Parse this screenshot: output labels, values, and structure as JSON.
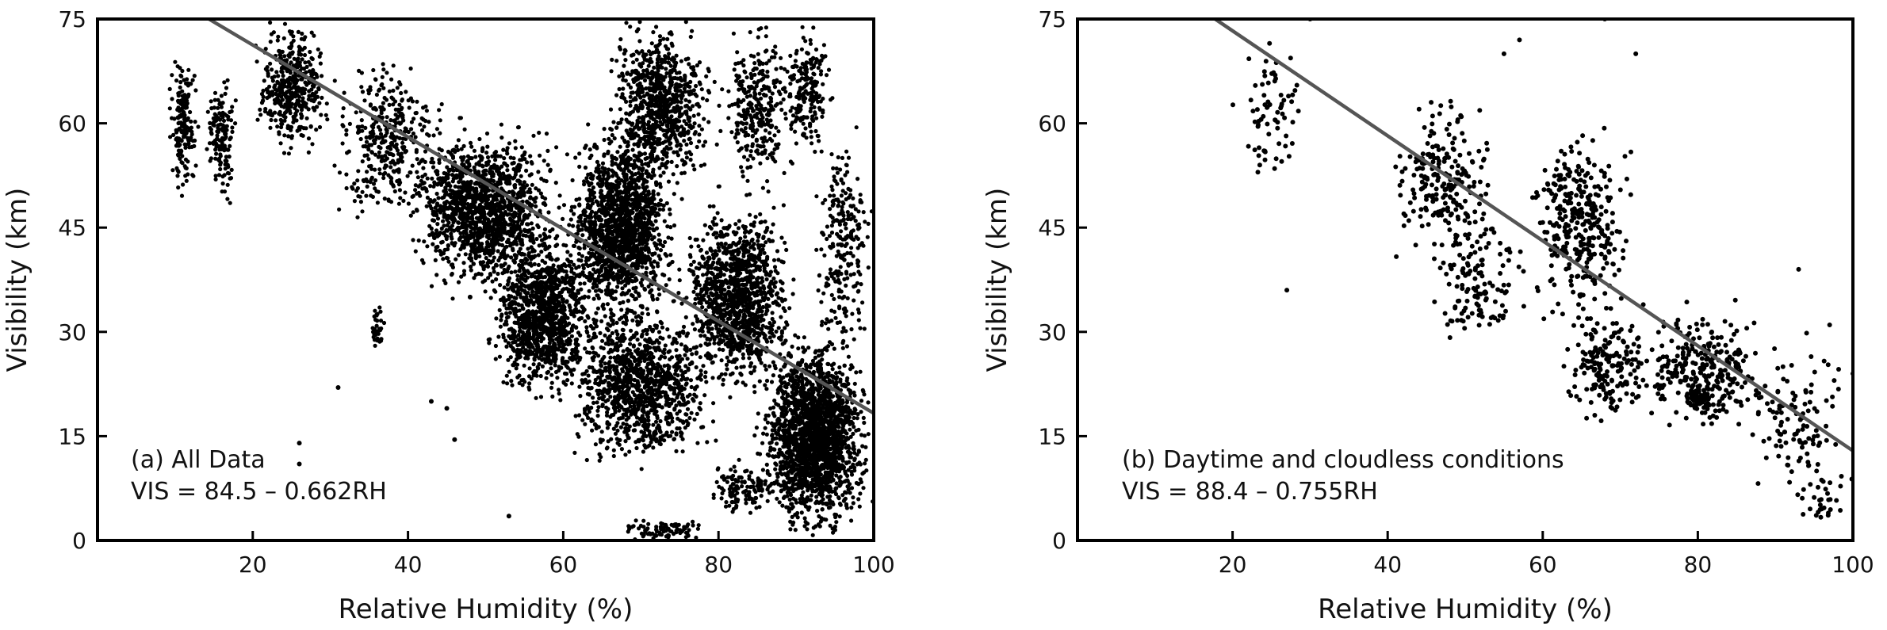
{
  "chart_data": [
    {
      "type": "scatter",
      "panel": "a",
      "xlabel": "Relative Humidity (%)",
      "ylabel": "Visibility (km)",
      "xlim": [
        0,
        100
      ],
      "ylim": [
        0,
        75
      ],
      "xticks": [
        "20",
        "40",
        "60",
        "80",
        "100"
      ],
      "yticks": [
        "0",
        "15",
        "30",
        "45",
        "60",
        "75"
      ],
      "annotations": [
        "(a) All Data",
        "VIS = 84.5 – 0.662RH"
      ],
      "fit_line": {
        "intercept": 84.5,
        "slope": -0.662,
        "color": "#555555"
      },
      "point_color": "#000000",
      "series_note": "dense cloud of several thousand observations",
      "clusters": [
        {
          "x": [
            9,
            13
          ],
          "y": [
            50,
            70
          ],
          "n": 180
        },
        {
          "x": [
            14,
            18
          ],
          "y": [
            48,
            68
          ],
          "n": 150
        },
        {
          "x": [
            20,
            30
          ],
          "y": [
            55,
            75
          ],
          "n": 420
        },
        {
          "x": [
            30,
            45
          ],
          "y": [
            45,
            70
          ],
          "n": 380
        },
        {
          "x": [
            35,
            37
          ],
          "y": [
            27,
            35
          ],
          "n": 40
        },
        {
          "x": [
            40,
            60
          ],
          "y": [
            35,
            60
          ],
          "n": 1400
        },
        {
          "x": [
            50,
            65
          ],
          "y": [
            20,
            45
          ],
          "n": 1100
        },
        {
          "x": [
            60,
            75
          ],
          "y": [
            30,
            60
          ],
          "n": 1500
        },
        {
          "x": [
            65,
            80
          ],
          "y": [
            50,
            75
          ],
          "n": 800
        },
        {
          "x": [
            60,
            80
          ],
          "y": [
            10,
            35
          ],
          "n": 1100
        },
        {
          "x": [
            75,
            90
          ],
          "y": [
            20,
            50
          ],
          "n": 1200
        },
        {
          "x": [
            80,
            90
          ],
          "y": [
            50,
            75
          ],
          "n": 300
        },
        {
          "x": [
            88,
            95
          ],
          "y": [
            55,
            75
          ],
          "n": 200
        },
        {
          "x": [
            85,
            100
          ],
          "y": [
            0,
            30
          ],
          "n": 2000
        },
        {
          "x": [
            92,
            100
          ],
          "y": [
            25,
            60
          ],
          "n": 250
        },
        {
          "x": [
            66,
            80
          ],
          "y": [
            0,
            3
          ],
          "n": 80
        },
        {
          "x": [
            78,
            88
          ],
          "y": [
            3,
            12
          ],
          "n": 120
        }
      ],
      "outliers": [
        [
          26,
          11
        ],
        [
          26,
          14
        ],
        [
          43,
          20
        ],
        [
          45,
          19
        ],
        [
          46,
          14.5
        ],
        [
          53,
          3.5
        ],
        [
          48,
          35
        ],
        [
          31,
          22
        ]
      ]
    },
    {
      "type": "scatter",
      "panel": "b",
      "xlabel": "Relative Humidity (%)",
      "ylabel": "Visibility (km)",
      "xlim": [
        0,
        100
      ],
      "ylim": [
        0,
        75
      ],
      "xticks": [
        "20",
        "40",
        "60",
        "80",
        "100"
      ],
      "yticks": [
        "15",
        "30",
        "45",
        "60",
        "75"
      ],
      "y_zero_label": "0",
      "annotations": [
        "(b) Daytime and cloudless conditions",
        "VIS = 88.4 – 0.755RH"
      ],
      "fit_line": {
        "intercept": 88.4,
        "slope": -0.755,
        "color": "#555555"
      },
      "point_color": "#000000",
      "clusters": [
        {
          "x": [
            20,
            30
          ],
          "y": [
            50,
            75
          ],
          "n": 70
        },
        {
          "x": [
            40,
            55
          ],
          "y": [
            38,
            65
          ],
          "n": 220
        },
        {
          "x": [
            45,
            58
          ],
          "y": [
            28,
            48
          ],
          "n": 120
        },
        {
          "x": [
            58,
            72
          ],
          "y": [
            30,
            60
          ],
          "n": 320
        },
        {
          "x": [
            62,
            75
          ],
          "y": [
            15,
            35
          ],
          "n": 180
        },
        {
          "x": [
            72,
            90
          ],
          "y": [
            15,
            35
          ],
          "n": 260
        },
        {
          "x": [
            78,
            82
          ],
          "y": [
            18,
            23
          ],
          "n": 60
        },
        {
          "x": [
            85,
            100
          ],
          "y": [
            5,
            30
          ],
          "n": 110
        },
        {
          "x": [
            92,
            99
          ],
          "y": [
            2,
            10
          ],
          "n": 30
        }
      ],
      "outliers": [
        [
          27,
          36
        ],
        [
          68,
          75
        ],
        [
          30,
          75
        ],
        [
          57,
          72
        ],
        [
          55,
          70
        ],
        [
          72,
          70
        ],
        [
          93,
          39
        ],
        [
          97,
          31
        ],
        [
          100,
          24
        ]
      ]
    }
  ]
}
